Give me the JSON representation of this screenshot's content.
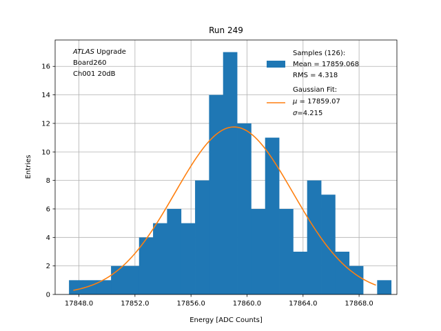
{
  "chart_data": {
    "type": "bar",
    "title": "Run 249",
    "xlabel": "Energy [ADC Counts]",
    "ylabel": "Entries",
    "xlim": [
      17846.3,
      17870.7
    ],
    "ylim": [
      0,
      17.85
    ],
    "xticks": [
      17848,
      17852,
      17856,
      17860,
      17864,
      17868
    ],
    "xtick_labels": [
      "17848.0",
      "17852.0",
      "17856.0",
      "17860.0",
      "17864.0",
      "17868.0"
    ],
    "yticks": [
      0,
      2,
      4,
      6,
      8,
      10,
      12,
      14,
      16
    ],
    "ytick_labels": [
      "0",
      "2",
      "4",
      "6",
      "8",
      "10",
      "12",
      "14",
      "16"
    ],
    "grid": true,
    "bin_edges": [
      17847.29,
      17848.29,
      17849.29,
      17850.29,
      17851.29,
      17852.29,
      17853.29,
      17854.29,
      17855.29,
      17856.29,
      17857.29,
      17858.29,
      17859.29,
      17860.29,
      17861.29,
      17862.29,
      17863.29,
      17864.29,
      17865.29,
      17866.29,
      17867.29,
      17868.29,
      17869.29,
      17870.29
    ],
    "series": [
      {
        "name": "Samples (126):\n Mean = 17859.068\n RMS = 4.318",
        "type": "histogram",
        "color": "#1f77b4",
        "values": [
          1,
          1,
          1,
          2,
          2,
          4,
          5,
          6,
          5,
          8,
          14,
          17,
          12,
          6,
          11,
          6,
          3,
          8,
          7,
          3,
          2,
          0,
          1
        ]
      },
      {
        "name": "Gaussian Fit:\n μ = 17859.07\n σ=4.215",
        "type": "line",
        "color": "#ff7f0e",
        "function": "gaussian",
        "mu": 17859.07,
        "sigma": 4.215,
        "amplitude": 11.75,
        "x_range": [
          17847.6,
          17869.2
        ]
      }
    ],
    "legend": {
      "position": "upper right",
      "entries": [
        [
          "Samples (126):",
          " Mean = 17859.068",
          " RMS = 4.318"
        ],
        [
          "Gaussian Fit:",
          " μ = 17859.07",
          " σ=4.215"
        ]
      ]
    },
    "annotation": {
      "position": "upper left",
      "lines": [
        "ATLAS Upgrade",
        " Board260",
        " Ch001 20dB"
      ]
    }
  }
}
